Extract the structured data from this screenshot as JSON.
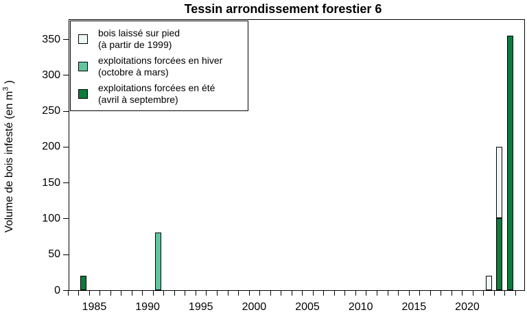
{
  "title": "Tessin arrondissement forestier 6",
  "colors": {
    "laisse": "#EFF8F3",
    "hiver": "#62C5A0",
    "ete": "#0E7B3C",
    "axis": "#000000",
    "background": "#FFFFFF"
  },
  "legend": {
    "items": [
      {
        "key": "laisse",
        "color": "#EFF8F3",
        "label_line1": "bois laissé sur pied",
        "label_line2": "(à partir de 1999)"
      },
      {
        "key": "hiver",
        "color": "#62C5A0",
        "label_line1": "exploitations forcées en hiver",
        "label_line2": "(octobre à mars)"
      },
      {
        "key": "ete",
        "color": "#0E7B3C",
        "label_line1": "exploitations forcées en été",
        "label_line2": "(avril à septembre)"
      }
    ]
  },
  "y_axis": {
    "label_prefix": "Volume de bois infesté (en m",
    "label_sup": "3",
    "label_suffix": " )",
    "ticks": [
      0,
      50,
      100,
      150,
      200,
      250,
      300,
      350
    ]
  },
  "x_axis": {
    "year_start": 1983,
    "year_end": 2025,
    "labeled_years": [
      1985,
      1990,
      1995,
      2000,
      2005,
      2010,
      2015,
      2020
    ]
  },
  "chart_data": {
    "type": "bar",
    "title": "Tessin arrondissement forestier 6",
    "xlabel": "",
    "ylabel": "Volume de bois infesté (en m3)",
    "ylim": [
      0,
      378
    ],
    "yticks": [
      0,
      50,
      100,
      150,
      200,
      250,
      300,
      350
    ],
    "x_years_range": [
      1983,
      2025
    ],
    "xtick_labels": [
      "1985",
      "1990",
      "1995",
      "2000",
      "2005",
      "2010",
      "2015",
      "2020"
    ],
    "grid": false,
    "legend_position": "top-left",
    "stacked": true,
    "series": [
      {
        "key": "laisse",
        "name": "bois laissé sur pied (à partir de 1999)",
        "color": "#EFF8F3",
        "stack_order": 2,
        "points": [
          {
            "year": 2022,
            "value": 20
          },
          {
            "year": 2023,
            "value": 100
          }
        ]
      },
      {
        "key": "hiver",
        "name": "exploitations forcées en hiver (octobre à mars)",
        "color": "#62C5A0",
        "stack_order": 1,
        "points": [
          {
            "year": 1991,
            "value": 80
          }
        ]
      },
      {
        "key": "ete",
        "name": "exploitations forcées en été (avril à septembre)",
        "color": "#0E7B3C",
        "stack_order": 0,
        "points": [
          {
            "year": 1984,
            "value": 20
          },
          {
            "year": 2023,
            "value": 100
          },
          {
            "year": 2024,
            "value": 355
          }
        ]
      }
    ]
  }
}
